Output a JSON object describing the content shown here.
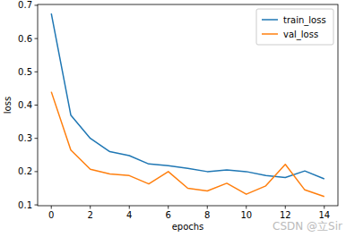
{
  "chart_data": {
    "type": "line",
    "x": [
      0,
      1,
      2,
      3,
      4,
      5,
      6,
      7,
      8,
      9,
      10,
      11,
      12,
      13,
      14
    ],
    "series": [
      {
        "name": "train_loss",
        "color": "#1f77b4",
        "values": [
          0.675,
          0.37,
          0.3,
          0.26,
          0.248,
          0.223,
          0.218,
          0.21,
          0.2,
          0.205,
          0.2,
          0.188,
          0.182,
          0.202,
          0.178
        ]
      },
      {
        "name": "val_loss",
        "color": "#ff7f0e",
        "values": [
          0.44,
          0.265,
          0.207,
          0.193,
          0.188,
          0.163,
          0.2,
          0.15,
          0.142,
          0.165,
          0.132,
          0.157,
          0.222,
          0.145,
          0.125
        ]
      }
    ],
    "x_label": "epochs",
    "y_label": "loss",
    "xlim": [
      -0.7,
      14.7
    ],
    "ylim": [
      0.0975,
      0.7025
    ],
    "xticks": [
      0,
      2,
      4,
      6,
      8,
      10,
      12,
      14
    ],
    "yticks": [
      0.1,
      0.2,
      0.3,
      0.4,
      0.5,
      0.6,
      0.7
    ],
    "grid": false,
    "legend": "upper right",
    "annotations": [
      "CSDN @立Sir"
    ]
  }
}
